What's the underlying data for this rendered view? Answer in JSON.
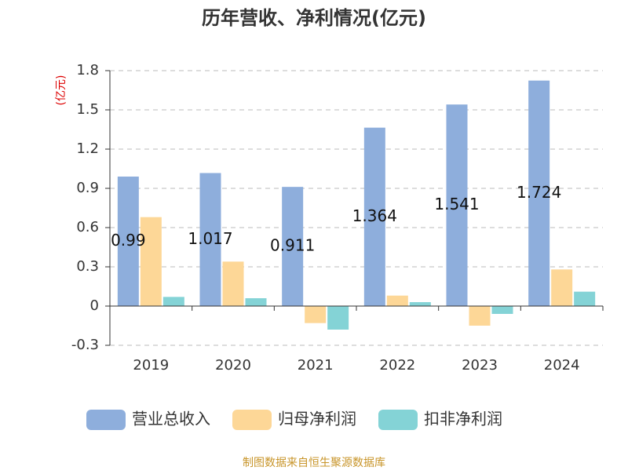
{
  "chart_data": {
    "type": "bar",
    "title": "历年营收、净利情况(亿元)",
    "y_label": "(亿元)",
    "categories": [
      "2019",
      "2020",
      "2021",
      "2022",
      "2023",
      "2024"
    ],
    "series": [
      {
        "name": "营业总收入",
        "color": "#8eaedc",
        "values": [
          0.99,
          1.017,
          0.911,
          1.364,
          1.541,
          1.724
        ],
        "show_labels": true
      },
      {
        "name": "归母净利润",
        "color": "#fdd797",
        "values": [
          0.68,
          0.34,
          -0.13,
          0.08,
          -0.15,
          0.28
        ]
      },
      {
        "name": "扣非净利润",
        "color": "#84d3d6",
        "values": [
          0.07,
          0.06,
          -0.18,
          0.03,
          -0.06,
          0.11
        ]
      }
    ],
    "ylim": [
      -0.3,
      1.8
    ],
    "yticks": [
      -0.3,
      0,
      0.3,
      0.6,
      0.9,
      1.2,
      1.5,
      1.8
    ],
    "grid": true,
    "source": "制图数据来自恒生聚源数据库"
  }
}
